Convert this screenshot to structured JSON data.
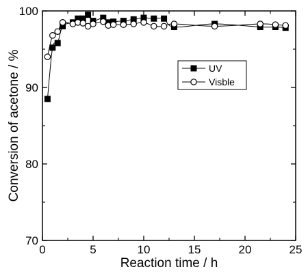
{
  "chart_data": {
    "type": "line",
    "xlabel": "Reaction time / h",
    "ylabel": "Conversion of acetone / %",
    "xlim": [
      0,
      25
    ],
    "ylim": [
      70,
      100
    ],
    "x_ticks": [
      "0",
      "5",
      "10",
      "15",
      "20",
      "25"
    ],
    "y_ticks": [
      "70",
      "80",
      "90",
      "100"
    ],
    "grid": false,
    "legend": "upper-right inside plot",
    "series": [
      {
        "name": "UV",
        "marker": "filled-square",
        "x": [
          0.5,
          1.0,
          1.5,
          2.0,
          3.0,
          3.5,
          4.0,
          4.5,
          5.0,
          6.0,
          6.5,
          7.0,
          8.0,
          9.0,
          10.0,
          11.0,
          12.0,
          13.0,
          17.0,
          21.5,
          23.0,
          24.0
        ],
        "y": [
          88.5,
          95.2,
          95.8,
          98.0,
          98.5,
          99.0,
          99.0,
          99.5,
          98.7,
          99.1,
          98.5,
          98.6,
          98.7,
          98.9,
          99.1,
          99.0,
          99.0,
          97.9,
          98.3,
          97.9,
          97.9,
          97.8
        ]
      },
      {
        "name": "Visble",
        "marker": "open-circle",
        "x": [
          0.5,
          1.0,
          1.5,
          2.0,
          3.0,
          3.5,
          4.0,
          4.5,
          5.0,
          6.0,
          6.5,
          7.0,
          8.0,
          9.0,
          10.0,
          11.0,
          12.0,
          13.0,
          17.0,
          21.5,
          23.0,
          24.0
        ],
        "y": [
          94.0,
          96.8,
          97.3,
          98.5,
          98.3,
          98.5,
          98.4,
          98.0,
          98.3,
          98.6,
          98.1,
          98.2,
          98.2,
          98.3,
          98.5,
          98.0,
          98.0,
          98.3,
          98.0,
          98.3,
          98.2,
          98.1
        ]
      }
    ]
  }
}
